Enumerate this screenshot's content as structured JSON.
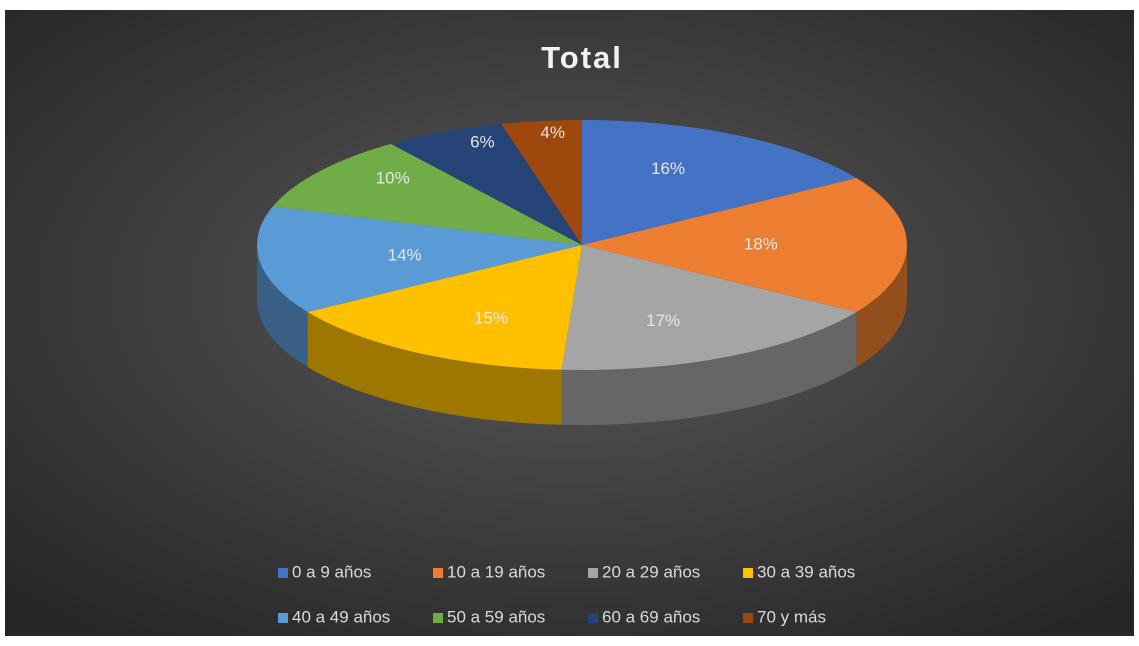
{
  "chart_data": {
    "type": "pie",
    "title": "Total",
    "categories": [
      "0 a 9 años",
      "10 a 19 años",
      "20 a 29 años",
      "30 a 39 años",
      "40 a 49 años",
      "50 a 59 años",
      "60 a 69 años",
      "70 y más"
    ],
    "values": [
      16,
      18,
      17,
      15,
      14,
      10,
      6,
      4
    ],
    "value_labels": [
      "16%",
      "18%",
      "17%",
      "15%",
      "14%",
      "10%",
      "6%",
      "4%"
    ],
    "colors": [
      "#4472c4",
      "#ed7d31",
      "#a5a5a5",
      "#ffc000",
      "#5b9bd5",
      "#70ad47",
      "#264478",
      "#9e480e"
    ],
    "legend": "bottom"
  }
}
